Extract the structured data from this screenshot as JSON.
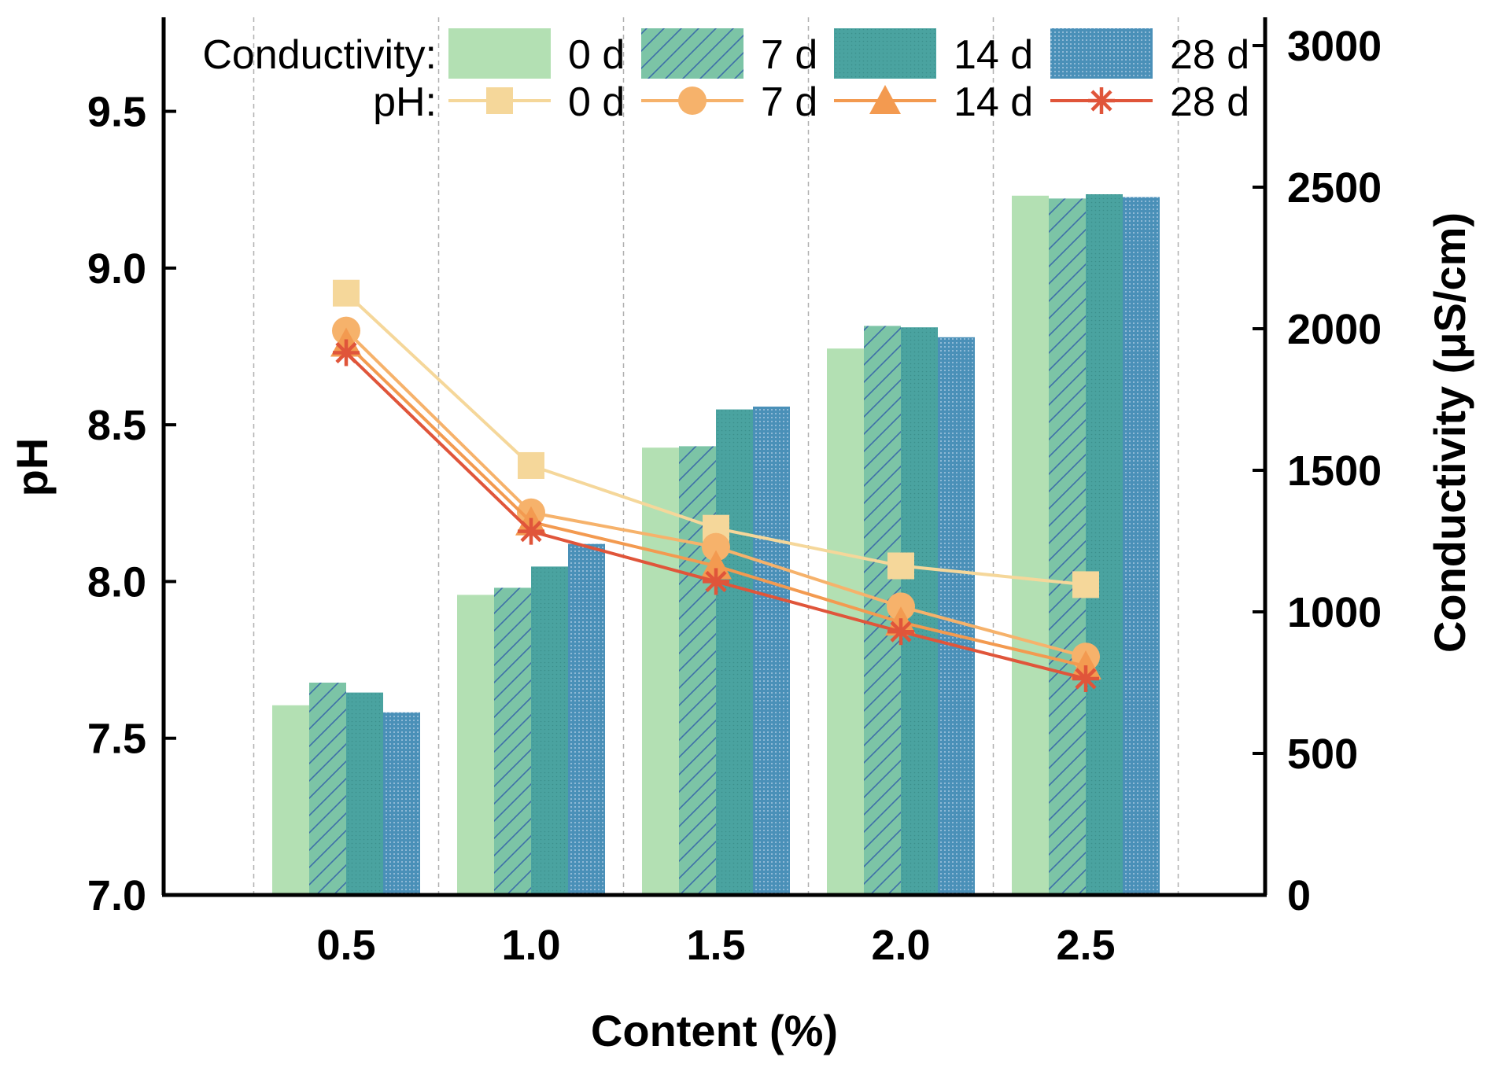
{
  "chart_data": {
    "type": "bar",
    "xlabel": "Content (%)",
    "ylabel": "pH",
    "y2label": "Conductivity (μS/cm)",
    "categories": [
      "0.5",
      "1.0",
      "1.5",
      "2.0",
      "2.5"
    ],
    "ylim": [
      7.0,
      9.8
    ],
    "yticks": [
      "7.0",
      "7.5",
      "8.0",
      "8.5",
      "9.0",
      "9.5"
    ],
    "y2lim": [
      0,
      3100
    ],
    "y2ticks": [
      "0",
      "500",
      "1000",
      "1500",
      "2000",
      "2500",
      "3000"
    ],
    "grid": "vertical dashed lines between categories",
    "legend_position": "top",
    "legend": {
      "conductivity_label": "Conductivity:",
      "ph_label": "pH:"
    },
    "bar_series": [
      {
        "name": "0 d",
        "color": "#b3e0b3",
        "pattern": "solid",
        "values": [
          670,
          1060,
          1580,
          1930,
          2470
        ]
      },
      {
        "name": "7 d",
        "color": "#7cc4a6",
        "pattern": "diagonal-hatch",
        "values": [
          750,
          1085,
          1585,
          2010,
          2460
        ]
      },
      {
        "name": "14 d",
        "color": "#4aa3a0",
        "pattern": "fine-dots",
        "values": [
          715,
          1160,
          1715,
          2005,
          2475
        ]
      },
      {
        "name": "28 d",
        "color": "#4a90b8",
        "pattern": "grid-dots",
        "values": [
          645,
          1240,
          1725,
          1970,
          2465
        ]
      }
    ],
    "line_series": [
      {
        "name": "0 d",
        "color": "#f5d79a",
        "marker": "square",
        "values": [
          8.92,
          8.37,
          8.17,
          8.05,
          7.99
        ]
      },
      {
        "name": "7 d",
        "color": "#f6b26b",
        "marker": "circle",
        "values": [
          8.8,
          8.22,
          8.11,
          7.92,
          7.76
        ]
      },
      {
        "name": "14 d",
        "color": "#f39a50",
        "marker": "triangle",
        "values": [
          8.76,
          8.19,
          8.05,
          7.87,
          7.73
        ]
      },
      {
        "name": "28 d",
        "color": "#e0553a",
        "marker": "asterisk",
        "values": [
          8.73,
          8.16,
          8.0,
          7.84,
          7.69
        ]
      }
    ]
  }
}
